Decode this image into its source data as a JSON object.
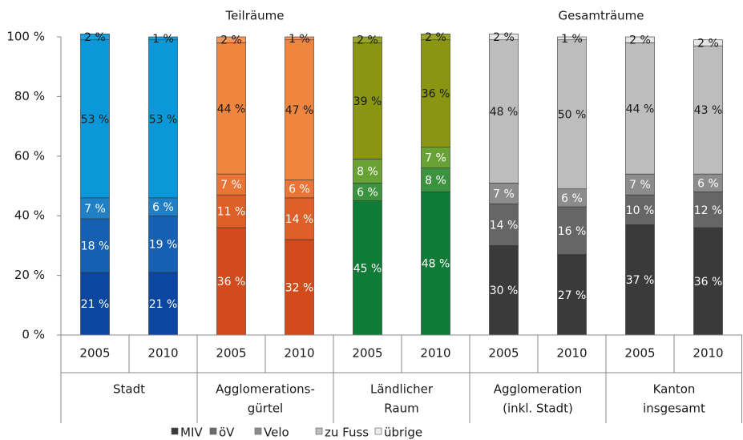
{
  "chart_data": {
    "type": "stacked_bar",
    "annotations": [
      "Teilräume",
      "Gesamträume"
    ],
    "categories": [
      "2005",
      "2010",
      "2005",
      "2010",
      "2005",
      "2010",
      "2005",
      "2010",
      "2005",
      "2010"
    ],
    "groups": [
      [
        "Stadt"
      ],
      [
        "Agglomerations-",
        "gürtel"
      ],
      [
        "Ländlicher",
        "Raum"
      ],
      [
        "Agglomeration",
        "(inkl. Stadt)"
      ],
      [
        "Kanton",
        "insgesamt"
      ]
    ],
    "ylim": [
      0,
      100
    ],
    "yticks": [
      {
        "value": 0,
        "label": "0 %"
      },
      {
        "value": 20,
        "label": "20 %"
      },
      {
        "value": 40,
        "label": "40 %"
      },
      {
        "value": 60,
        "label": "60 %"
      },
      {
        "value": 80,
        "label": "80 %"
      },
      {
        "value": 100,
        "label": "100 %"
      }
    ],
    "legend": "bottom",
    "series": [
      {
        "name": "MIV",
        "color": "#3a3a3a",
        "colors": [
          "#0b47a0",
          "#0b47a0",
          "#d14b1c",
          "#d14b1c",
          "#0f7b36",
          "#0f7b36",
          "#3a3a3a",
          "#3a3a3a",
          "#3a3a3a",
          "#3a3a3a"
        ],
        "values": [
          21,
          21,
          36,
          32,
          45,
          48,
          30,
          27,
          37,
          36
        ],
        "value_labels": [
          "21 %",
          "21 %",
          "36 %",
          "32 %",
          "45 %",
          "48 %",
          "30 %",
          "27 %",
          "37 %",
          "36 %"
        ]
      },
      {
        "name": "öV",
        "color": "#6b6b6b",
        "colors": [
          "#1560b2",
          "#1560b2",
          "#df5f28",
          "#df5f28",
          "#3b933f",
          "#3b933f",
          "#666666",
          "#666666",
          "#666666",
          "#666666"
        ],
        "values": [
          18,
          19,
          11,
          14,
          6,
          8,
          14,
          16,
          10,
          12
        ],
        "value_labels": [
          "18 %",
          "19 %",
          "11 %",
          "14 %",
          "6 %",
          "8 %",
          "14 %",
          "16 %",
          "10 %",
          "12 %"
        ]
      },
      {
        "name": "Velo",
        "color": "#8c8c8c",
        "colors": [
          "#1f80c6",
          "#1f80c6",
          "#ea7436",
          "#ea7436",
          "#68a134",
          "#68a134",
          "#8c8c8c",
          "#8c8c8c",
          "#8c8c8c",
          "#8c8c8c"
        ],
        "values": [
          7,
          6,
          7,
          6,
          8,
          7,
          7,
          6,
          7,
          6
        ],
        "value_labels": [
          "7 %",
          "6 %",
          "7 %",
          "6 %",
          "8 %",
          "7 %",
          "7 %",
          "6 %",
          "7 %",
          "6 %"
        ]
      },
      {
        "name": "zu Fuss",
        "color": "#bdbdbd",
        "colors": [
          "#0a98d8",
          "#0a98d8",
          "#f0853f",
          "#f0853f",
          "#8a9612",
          "#8a9612",
          "#bdbdbd",
          "#bdbdbd",
          "#bdbdbd",
          "#bdbdbd"
        ],
        "values": [
          53,
          53,
          44,
          47,
          39,
          36,
          48,
          50,
          44,
          43
        ],
        "value_labels": [
          "53 %",
          "53 %",
          "44 %",
          "47 %",
          "39 %",
          "36 %",
          "48 %",
          "50 %",
          "44 %",
          "43 %"
        ]
      },
      {
        "name": "übrige",
        "color": "#ececec",
        "colors": [
          "#1aa0dc",
          "#1aa0dc",
          "#f29a5e",
          "#f29a5e",
          "#98a42a",
          "#98a42a",
          "#e6e6e6",
          "#e6e6e6",
          "#e6e6e6",
          "#e6e6e6"
        ],
        "values": [
          2,
          1,
          2,
          1,
          2,
          2,
          2,
          1,
          2,
          2
        ],
        "value_labels": [
          "2 %",
          "1 %",
          "2 %",
          "1 %",
          "2 %",
          "2 %",
          "2 %",
          "1 %",
          "2 %",
          "2 %"
        ]
      }
    ]
  }
}
